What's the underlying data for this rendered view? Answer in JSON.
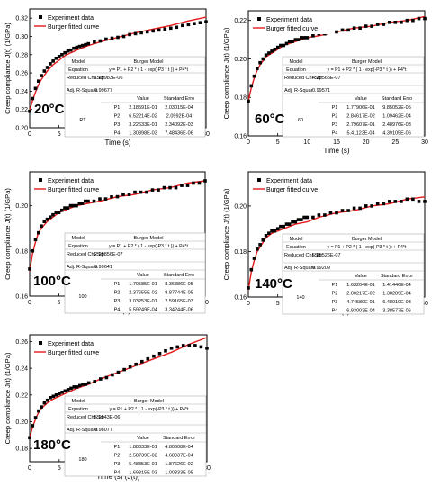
{
  "colors": {
    "data": "#000000",
    "fit": "#e41a1c",
    "axis": "#000000"
  },
  "chart_data": [
    {
      "type": "scatter",
      "temperature": "20°C",
      "xlabel": "Time (s)",
      "ylabel": "Creep compliance J(t) (1/GPa)",
      "xlim": [
        0,
        30
      ],
      "ylim": [
        0.2,
        0.33
      ],
      "xticks": [
        "0",
        "5",
        "10",
        "15",
        "20",
        "25",
        "30"
      ],
      "yticks": [
        "0.20",
        "0.22",
        "0.24",
        "0.26",
        "0.28",
        "0.30",
        "0.32"
      ],
      "legend": {
        "position": "top-left",
        "entries": [
          "Experiment data",
          "Burger fitted curve"
        ]
      },
      "series": [
        {
          "name": "Experiment data",
          "marker": "square",
          "x": [
            0,
            0.5,
            1,
            1.5,
            2,
            2.5,
            3,
            3.5,
            4,
            4.5,
            5,
            5.5,
            6,
            6.5,
            7,
            7.5,
            8,
            8.5,
            9,
            9.5,
            10,
            11,
            12,
            13,
            14,
            15,
            16,
            17,
            18,
            19,
            20,
            21,
            22,
            23,
            24,
            25,
            26,
            27,
            28,
            29,
            30
          ],
          "y": [
            0.218,
            0.232,
            0.243,
            0.251,
            0.257,
            0.262,
            0.266,
            0.27,
            0.273,
            0.276,
            0.278,
            0.28,
            0.282,
            0.284,
            0.285,
            0.287,
            0.288,
            0.289,
            0.29,
            0.291,
            0.292,
            0.294,
            0.295,
            0.297,
            0.298,
            0.299,
            0.3,
            0.302,
            0.303,
            0.304,
            0.305,
            0.306,
            0.307,
            0.308,
            0.309,
            0.31,
            0.312,
            0.313,
            0.314,
            0.315,
            0.316
          ]
        },
        {
          "name": "Burger fitted curve",
          "line": true,
          "x": [
            0,
            0.5,
            1,
            1.5,
            2,
            3,
            4,
            5,
            6,
            8,
            10,
            12,
            15,
            18,
            21,
            24,
            27,
            30
          ],
          "y": [
            0.219,
            0.23,
            0.239,
            0.247,
            0.253,
            0.262,
            0.269,
            0.274,
            0.279,
            0.285,
            0.29,
            0.294,
            0.299,
            0.304,
            0.308,
            0.312,
            0.317,
            0.321
          ]
        }
      ],
      "table": {
        "header": [
          "Model",
          "Burger Model"
        ],
        "equation_label": "Equation",
        "equation": "y = P1 + P2 * ( 1 - exp(-P3 * t )) + P4*t",
        "chi_label": "Reduced Chi-Sqr",
        "chi_value": "1.65983E-06",
        "r2_label": "Adj. R-Square",
        "r2_value": "0.99677",
        "col_value": "Value",
        "col_error": "Standard Erro",
        "group": "RT",
        "params": [
          {
            "name": "P1",
            "value": "2.18591E-01",
            "error": "2.03015E-04"
          },
          {
            "name": "P2",
            "value": "6.52214E-02",
            "error": "2.0992E-04"
          },
          {
            "name": "P3",
            "value": "3.22633E-01",
            "error": "2.34092E-03"
          },
          {
            "name": "P4",
            "value": "1.30398E-03",
            "error": "7.48436E-06"
          }
        ]
      }
    },
    {
      "type": "scatter",
      "temperature": "60°C",
      "xlabel": "Time (s)",
      "ylabel": "Creep compliance J(t) (1/GPa)",
      "xlim": [
        0,
        30
      ],
      "ylim": [
        0.16,
        0.225
      ],
      "xticks": [
        "0",
        "5",
        "10",
        "15",
        "20",
        "25",
        "30"
      ],
      "yticks": [
        "0.16",
        "0.18",
        "0.20",
        "0.22"
      ],
      "legend": {
        "position": "top-left",
        "entries": [
          "Experiment data",
          "Burger fitted curve"
        ]
      },
      "series": [
        {
          "name": "Experiment data",
          "marker": "square",
          "x": [
            0,
            0.5,
            1,
            1.5,
            2,
            2.5,
            3,
            3.5,
            4,
            4.5,
            5,
            5.5,
            6,
            6.5,
            7,
            7.5,
            8,
            8.5,
            9,
            9.5,
            10,
            11,
            12,
            13,
            14,
            15,
            16,
            17,
            18,
            19,
            20,
            21,
            22,
            23,
            24,
            25,
            26,
            27,
            28,
            29,
            30
          ],
          "y": [
            0.178,
            0.186,
            0.191,
            0.195,
            0.198,
            0.2,
            0.202,
            0.203,
            0.204,
            0.205,
            0.206,
            0.207,
            0.207,
            0.208,
            0.209,
            0.209,
            0.21,
            0.21,
            0.211,
            0.211,
            0.211,
            0.212,
            0.213,
            0.213,
            0.214,
            0.214,
            0.215,
            0.215,
            0.216,
            0.216,
            0.217,
            0.217,
            0.218,
            0.218,
            0.219,
            0.219,
            0.219,
            0.22,
            0.22,
            0.221,
            0.221
          ]
        },
        {
          "name": "Burger fitted curve",
          "line": true,
          "x": [
            0,
            0.5,
            1,
            1.5,
            2,
            3,
            4,
            5,
            6,
            8,
            10,
            12,
            15,
            18,
            21,
            24,
            27,
            30
          ],
          "y": [
            0.178,
            0.185,
            0.19,
            0.194,
            0.197,
            0.201,
            0.203,
            0.205,
            0.207,
            0.209,
            0.211,
            0.212,
            0.214,
            0.216,
            0.217,
            0.219,
            0.22,
            0.222
          ]
        }
      ],
      "table": {
        "header": [
          "Model",
          "Burger Model"
        ],
        "equation_label": "Equation",
        "equation": "y = P1 + P2 * ( 1 - exp(-P3 * t )) + P4*t",
        "chi_label": "Reduced Chi-Sqr",
        "chi_value": "4.35565E-07",
        "r2_label": "Adj. R-Squar",
        "r2_value": "0.99571",
        "col_value": "Value",
        "col_error": "Standard Erro",
        "group": "60",
        "params": [
          {
            "name": "P1",
            "value": "1.77906E-01",
            "error": "9.85052E-05"
          },
          {
            "name": "P2",
            "value": "2.84617E-02",
            "error": "1.09462E-04"
          },
          {
            "name": "P3",
            "value": "2.79607E-01",
            "error": "2.48976E-03"
          },
          {
            "name": "P4",
            "value": "5.41123E-04",
            "error": "4.39105E-06"
          }
        ]
      }
    },
    {
      "type": "scatter",
      "temperature": "100°C",
      "xlabel": "Time (s)",
      "ylabel": "Creep compliance J(t) (1/GPa)",
      "xlim": [
        0,
        30
      ],
      "ylim": [
        0.16,
        0.215
      ],
      "xticks": [
        "0",
        "5",
        "10",
        "15",
        "20",
        "25",
        "30"
      ],
      "yticks": [
        "0.16",
        "0.18",
        "0.20"
      ],
      "legend": {
        "position": "top-left",
        "entries": [
          "Experiment data",
          "Burger fitted curve"
        ]
      },
      "series": [
        {
          "name": "Experiment data",
          "marker": "square",
          "x": [
            0,
            0.5,
            1,
            1.5,
            2,
            2.5,
            3,
            3.5,
            4,
            4.5,
            5,
            5.5,
            6,
            6.5,
            7,
            7.5,
            8,
            8.5,
            9,
            9.5,
            10,
            11,
            12,
            13,
            14,
            15,
            16,
            17,
            18,
            19,
            20,
            21,
            22,
            23,
            24,
            25,
            26,
            27,
            28,
            29,
            30
          ],
          "y": [
            0.172,
            0.18,
            0.185,
            0.188,
            0.191,
            0.193,
            0.194,
            0.195,
            0.196,
            0.197,
            0.197,
            0.198,
            0.199,
            0.199,
            0.2,
            0.2,
            0.2,
            0.201,
            0.201,
            0.202,
            0.202,
            0.202,
            0.203,
            0.203,
            0.204,
            0.204,
            0.205,
            0.205,
            0.206,
            0.206,
            0.206,
            0.207,
            0.207,
            0.208,
            0.208,
            0.208,
            0.209,
            0.209,
            0.21,
            0.21,
            0.211
          ]
        },
        {
          "name": "Burger fitted curve",
          "line": true,
          "x": [
            0,
            0.5,
            1,
            1.5,
            2,
            3,
            4,
            5,
            6,
            8,
            10,
            12,
            15,
            18,
            21,
            24,
            27,
            30
          ],
          "y": [
            0.171,
            0.179,
            0.184,
            0.188,
            0.19,
            0.193,
            0.195,
            0.197,
            0.198,
            0.2,
            0.201,
            0.202,
            0.204,
            0.205,
            0.207,
            0.208,
            0.21,
            0.211
          ]
        }
      ],
      "table": {
        "header": [
          "Model",
          "Burger Model"
        ],
        "equation_label": "Equation",
        "equation": "y = P1 + P2 * ( 1 - exp(-P3 * t )) + P4*t",
        "chi_label": "Reduced Chi-Sqr",
        "chi_value": "2.95856E-07",
        "r2_label": "Adj. R-Square",
        "r2_value": "0.99641",
        "col_value": "Value",
        "col_error": "Standard Erro",
        "group": "100",
        "params": [
          {
            "name": "P1",
            "value": "1.70585E-01",
            "error": "8.36886E-05"
          },
          {
            "name": "P2",
            "value": "2.37655E-02",
            "error": "8.87744E-05"
          },
          {
            "name": "P3",
            "value": "3.03253E-01",
            "error": "2.59165E-03"
          },
          {
            "name": "P4",
            "value": "5.59249E-04",
            "error": "3.34244E-06"
          }
        ]
      }
    },
    {
      "type": "scatter",
      "temperature": "140°C",
      "xlabel": "Time (s)",
      "ylabel": "Creep compliance J(t) (1/GPa)",
      "xlim": [
        0,
        30
      ],
      "ylim": [
        0.16,
        0.215
      ],
      "xticks": [
        "0",
        "5",
        "10",
        "15",
        "20",
        "25",
        "30"
      ],
      "yticks": [
        "0.16",
        "0.18",
        "0.20"
      ],
      "legend": {
        "position": "top-left",
        "entries": [
          "Experiment data",
          "Burger fitted curve"
        ]
      },
      "series": [
        {
          "name": "Experiment data",
          "marker": "square",
          "x": [
            0,
            0.5,
            1,
            1.5,
            2,
            2.5,
            3,
            3.5,
            4,
            4.5,
            5,
            5.5,
            6,
            6.5,
            7,
            7.5,
            8,
            8.5,
            9,
            9.5,
            10,
            11,
            12,
            13,
            14,
            15,
            16,
            17,
            18,
            19,
            20,
            21,
            22,
            23,
            24,
            25,
            26,
            27,
            28,
            29,
            30
          ],
          "y": [
            0.164,
            0.172,
            0.177,
            0.181,
            0.183,
            0.185,
            0.187,
            0.188,
            0.189,
            0.189,
            0.19,
            0.191,
            0.191,
            0.192,
            0.192,
            0.193,
            0.193,
            0.194,
            0.194,
            0.195,
            0.195,
            0.195,
            0.196,
            0.196,
            0.197,
            0.197,
            0.198,
            0.198,
            0.199,
            0.199,
            0.2,
            0.2,
            0.201,
            0.201,
            0.202,
            0.202,
            0.202,
            0.203,
            0.203,
            0.202,
            0.202
          ]
        },
        {
          "name": "Burger fitted curve",
          "line": true,
          "x": [
            0,
            0.5,
            1,
            1.5,
            2,
            3,
            4,
            5,
            6,
            8,
            10,
            12,
            15,
            18,
            21,
            24,
            27,
            30
          ],
          "y": [
            0.163,
            0.171,
            0.176,
            0.18,
            0.182,
            0.186,
            0.188,
            0.189,
            0.19,
            0.192,
            0.193,
            0.195,
            0.197,
            0.198,
            0.2,
            0.201,
            0.203,
            0.204
          ]
        }
      ],
      "table": {
        "header": [
          "Model",
          "Burger Model"
        ],
        "equation_label": "Equation",
        "equation": "y = P1 + P2 * ( 1 - exp(-P3 * t )) + P4*t",
        "chi_label": "Reduced Chi-Sqr",
        "chi_value": "5.85526E-07",
        "r2_label": "Adj. R-Square",
        "r2_value": "0.99209",
        "col_value": "Value",
        "col_error": "Standard Error",
        "group": "140",
        "params": [
          {
            "name": "P1",
            "value": "1.63204E-01",
            "error": "1.41446E-04"
          },
          {
            "name": "P2",
            "value": "2.00217E-02",
            "error": "1.38289E-04"
          },
          {
            "name": "P3",
            "value": "4.74589E-01",
            "error": "6.48019E-03"
          },
          {
            "name": "P4",
            "value": "6.93003E-04",
            "error": "3.38577E-06"
          }
        ]
      }
    },
    {
      "type": "scatter",
      "temperature": "180°C",
      "xlabel": "Time (s) (J(t))",
      "ylabel": "Creep compliance J(t) (1/GPa)",
      "xlim": [
        0,
        30
      ],
      "ylim": [
        0.17,
        0.265
      ],
      "xticks": [
        "0",
        "5",
        "10",
        "15",
        "20",
        "25",
        "30"
      ],
      "yticks": [
        "0.18",
        "0.20",
        "0.22",
        "0.24",
        "0.26"
      ],
      "legend": {
        "position": "top-left",
        "entries": [
          "Experiment data",
          "Burger fitted curve"
        ]
      },
      "series": [
        {
          "name": "Experiment data",
          "marker": "square",
          "x": [
            0,
            0.5,
            1,
            1.5,
            2,
            2.5,
            3,
            3.5,
            4,
            4.5,
            5,
            5.5,
            6,
            6.5,
            7,
            7.5,
            8,
            8.5,
            9,
            9.5,
            10,
            11,
            12,
            13,
            14,
            15,
            16,
            17,
            18,
            19,
            20,
            21,
            22,
            23,
            24,
            25,
            26,
            27,
            28,
            29,
            30
          ],
          "y": [
            0.188,
            0.197,
            0.203,
            0.208,
            0.211,
            0.214,
            0.216,
            0.218,
            0.219,
            0.22,
            0.221,
            0.222,
            0.223,
            0.224,
            0.225,
            0.226,
            0.226,
            0.227,
            0.228,
            0.228,
            0.229,
            0.23,
            0.232,
            0.233,
            0.235,
            0.237,
            0.239,
            0.241,
            0.243,
            0.245,
            0.247,
            0.249,
            0.251,
            0.253,
            0.255,
            0.256,
            0.257,
            0.257,
            0.257,
            0.256,
            0.255
          ]
        },
        {
          "name": "Burger fitted curve",
          "line": true,
          "x": [
            0,
            0.5,
            1,
            1.5,
            2,
            3,
            4,
            5,
            6,
            8,
            10,
            12,
            15,
            18,
            21,
            24,
            27,
            30
          ],
          "y": [
            0.188,
            0.196,
            0.202,
            0.207,
            0.21,
            0.214,
            0.217,
            0.219,
            0.221,
            0.225,
            0.228,
            0.232,
            0.237,
            0.242,
            0.247,
            0.252,
            0.258,
            0.263
          ]
        }
      ],
      "table": {
        "header": [
          "Model",
          "Burger Model"
        ],
        "equation_label": "Equation",
        "equation": "y = P1 + P2 * ( 1 - exp(-P3 * t )) + P4*t",
        "chi_label": "Reduced Chi-Sqr",
        "chi_value": "5.9543E-06",
        "r2_label": "Adj. R-Square",
        "r2_value": "0.98077",
        "col_value": "Value",
        "col_error": "Standard Error",
        "group": "180",
        "params": [
          {
            "name": "P1",
            "value": "1.88833E-01",
            "error": "4.80608E-04"
          },
          {
            "name": "P2",
            "value": "2.58739E-02",
            "error": "4.68937E-04"
          },
          {
            "name": "P3",
            "value": "5.48353E-01",
            "error": "1.87626E-02"
          },
          {
            "name": "P4",
            "value": "1.69315E-03",
            "error": "1.00333E-05"
          }
        ]
      }
    }
  ]
}
